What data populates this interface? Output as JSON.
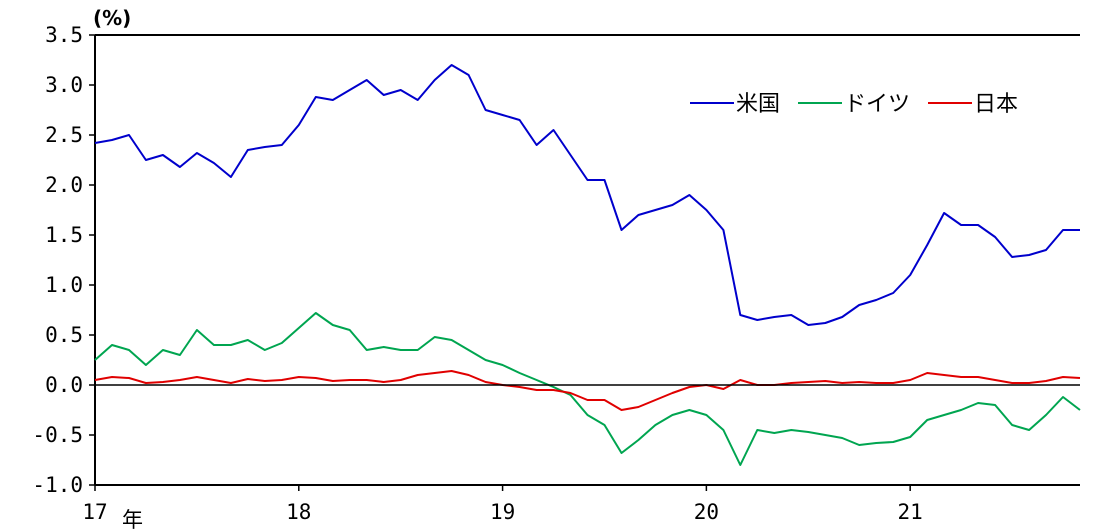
{
  "chart_data": {
    "type": "line",
    "unit_label": "(%)",
    "year_suffix": "年",
    "ylim": [
      -1.0,
      3.5
    ],
    "y_ticks": [
      "3.5",
      "3.0",
      "2.5",
      "2.0",
      "1.5",
      "1.0",
      "0.5",
      "0.0",
      "-0.5",
      "-1.0"
    ],
    "x_ticks": [
      "17",
      "18",
      "19",
      "20",
      "21"
    ],
    "xlim": [
      "2017-01",
      "2021-11"
    ],
    "legend_position": "top-right",
    "series": [
      {
        "name": "米国",
        "color": "#0000cc",
        "points": [
          [
            "2017-01",
            2.42
          ],
          [
            "2017-02",
            2.45
          ],
          [
            "2017-03",
            2.5
          ],
          [
            "2017-04",
            2.25
          ],
          [
            "2017-05",
            2.3
          ],
          [
            "2017-06",
            2.18
          ],
          [
            "2017-07",
            2.32
          ],
          [
            "2017-08",
            2.22
          ],
          [
            "2017-09",
            2.08
          ],
          [
            "2017-10",
            2.35
          ],
          [
            "2017-11",
            2.38
          ],
          [
            "2017-12",
            2.4
          ],
          [
            "2018-01",
            2.6
          ],
          [
            "2018-02",
            2.88
          ],
          [
            "2018-03",
            2.85
          ],
          [
            "2018-04",
            2.95
          ],
          [
            "2018-05",
            3.05
          ],
          [
            "2018-06",
            2.9
          ],
          [
            "2018-07",
            2.95
          ],
          [
            "2018-08",
            2.85
          ],
          [
            "2018-09",
            3.05
          ],
          [
            "2018-10",
            3.2
          ],
          [
            "2018-11",
            3.1
          ],
          [
            "2018-12",
            2.75
          ],
          [
            "2019-01",
            2.7
          ],
          [
            "2019-02",
            2.65
          ],
          [
            "2019-03",
            2.4
          ],
          [
            "2019-04",
            2.55
          ],
          [
            "2019-05",
            2.3
          ],
          [
            "2019-06",
            2.05
          ],
          [
            "2019-07",
            2.05
          ],
          [
            "2019-08",
            1.55
          ],
          [
            "2019-09",
            1.7
          ],
          [
            "2019-10",
            1.75
          ],
          [
            "2019-11",
            1.8
          ],
          [
            "2019-12",
            1.9
          ],
          [
            "2020-01",
            1.75
          ],
          [
            "2020-02",
            1.55
          ],
          [
            "2020-03",
            0.7
          ],
          [
            "2020-04",
            0.65
          ],
          [
            "2020-05",
            0.68
          ],
          [
            "2020-06",
            0.7
          ],
          [
            "2020-07",
            0.6
          ],
          [
            "2020-08",
            0.62
          ],
          [
            "2020-09",
            0.68
          ],
          [
            "2020-10",
            0.8
          ],
          [
            "2020-11",
            0.85
          ],
          [
            "2020-12",
            0.92
          ],
          [
            "2021-01",
            1.1
          ],
          [
            "2021-02",
            1.4
          ],
          [
            "2021-03",
            1.72
          ],
          [
            "2021-04",
            1.6
          ],
          [
            "2021-05",
            1.6
          ],
          [
            "2021-06",
            1.48
          ],
          [
            "2021-07",
            1.28
          ],
          [
            "2021-08",
            1.3
          ],
          [
            "2021-09",
            1.35
          ],
          [
            "2021-10",
            1.55
          ],
          [
            "2021-11",
            1.55
          ]
        ]
      },
      {
        "name": "ドイツ",
        "color": "#00a550",
        "points": [
          [
            "2017-01",
            0.25
          ],
          [
            "2017-02",
            0.4
          ],
          [
            "2017-03",
            0.35
          ],
          [
            "2017-04",
            0.2
          ],
          [
            "2017-05",
            0.35
          ],
          [
            "2017-06",
            0.3
          ],
          [
            "2017-07",
            0.55
          ],
          [
            "2017-08",
            0.4
          ],
          [
            "2017-09",
            0.4
          ],
          [
            "2017-10",
            0.45
          ],
          [
            "2017-11",
            0.35
          ],
          [
            "2017-12",
            0.42
          ],
          [
            "2018-01",
            0.57
          ],
          [
            "2018-02",
            0.72
          ],
          [
            "2018-03",
            0.6
          ],
          [
            "2018-04",
            0.55
          ],
          [
            "2018-05",
            0.35
          ],
          [
            "2018-06",
            0.38
          ],
          [
            "2018-07",
            0.35
          ],
          [
            "2018-08",
            0.35
          ],
          [
            "2018-09",
            0.48
          ],
          [
            "2018-10",
            0.45
          ],
          [
            "2018-11",
            0.35
          ],
          [
            "2018-12",
            0.25
          ],
          [
            "2019-01",
            0.2
          ],
          [
            "2019-02",
            0.12
          ],
          [
            "2019-03",
            0.05
          ],
          [
            "2019-04",
            -0.02
          ],
          [
            "2019-05",
            -0.1
          ],
          [
            "2019-06",
            -0.3
          ],
          [
            "2019-07",
            -0.4
          ],
          [
            "2019-08",
            -0.68
          ],
          [
            "2019-09",
            -0.55
          ],
          [
            "2019-10",
            -0.4
          ],
          [
            "2019-11",
            -0.3
          ],
          [
            "2019-12",
            -0.25
          ],
          [
            "2020-01",
            -0.3
          ],
          [
            "2020-02",
            -0.45
          ],
          [
            "2020-03",
            -0.8
          ],
          [
            "2020-04",
            -0.45
          ],
          [
            "2020-05",
            -0.48
          ],
          [
            "2020-06",
            -0.45
          ],
          [
            "2020-07",
            -0.47
          ],
          [
            "2020-08",
            -0.5
          ],
          [
            "2020-09",
            -0.53
          ],
          [
            "2020-10",
            -0.6
          ],
          [
            "2020-11",
            -0.58
          ],
          [
            "2020-12",
            -0.57
          ],
          [
            "2021-01",
            -0.52
          ],
          [
            "2021-02",
            -0.35
          ],
          [
            "2021-03",
            -0.3
          ],
          [
            "2021-04",
            -0.25
          ],
          [
            "2021-05",
            -0.18
          ],
          [
            "2021-06",
            -0.2
          ],
          [
            "2021-07",
            -0.4
          ],
          [
            "2021-08",
            -0.45
          ],
          [
            "2021-09",
            -0.3
          ],
          [
            "2021-10",
            -0.12
          ],
          [
            "2021-11",
            -0.25
          ]
        ]
      },
      {
        "name": "日本",
        "color": "#e00000",
        "points": [
          [
            "2017-01",
            0.05
          ],
          [
            "2017-02",
            0.08
          ],
          [
            "2017-03",
            0.07
          ],
          [
            "2017-04",
            0.02
          ],
          [
            "2017-05",
            0.03
          ],
          [
            "2017-06",
            0.05
          ],
          [
            "2017-07",
            0.08
          ],
          [
            "2017-08",
            0.05
          ],
          [
            "2017-09",
            0.02
          ],
          [
            "2017-10",
            0.06
          ],
          [
            "2017-11",
            0.04
          ],
          [
            "2017-12",
            0.05
          ],
          [
            "2018-01",
            0.08
          ],
          [
            "2018-02",
            0.07
          ],
          [
            "2018-03",
            0.04
          ],
          [
            "2018-04",
            0.05
          ],
          [
            "2018-05",
            0.05
          ],
          [
            "2018-06",
            0.03
          ],
          [
            "2018-07",
            0.05
          ],
          [
            "2018-08",
            0.1
          ],
          [
            "2018-09",
            0.12
          ],
          [
            "2018-10",
            0.14
          ],
          [
            "2018-11",
            0.1
          ],
          [
            "2018-12",
            0.03
          ],
          [
            "2019-01",
            0.0
          ],
          [
            "2019-02",
            -0.02
          ],
          [
            "2019-03",
            -0.05
          ],
          [
            "2019-04",
            -0.05
          ],
          [
            "2019-05",
            -0.08
          ],
          [
            "2019-06",
            -0.15
          ],
          [
            "2019-07",
            -0.15
          ],
          [
            "2019-08",
            -0.25
          ],
          [
            "2019-09",
            -0.22
          ],
          [
            "2019-10",
            -0.15
          ],
          [
            "2019-11",
            -0.08
          ],
          [
            "2019-12",
            -0.02
          ],
          [
            "2020-01",
            0.0
          ],
          [
            "2020-02",
            -0.04
          ],
          [
            "2020-03",
            0.05
          ],
          [
            "2020-04",
            0.0
          ],
          [
            "2020-05",
            0.0
          ],
          [
            "2020-06",
            0.02
          ],
          [
            "2020-07",
            0.03
          ],
          [
            "2020-08",
            0.04
          ],
          [
            "2020-09",
            0.02
          ],
          [
            "2020-10",
            0.03
          ],
          [
            "2020-11",
            0.02
          ],
          [
            "2020-12",
            0.02
          ],
          [
            "2021-01",
            0.05
          ],
          [
            "2021-02",
            0.12
          ],
          [
            "2021-03",
            0.1
          ],
          [
            "2021-04",
            0.08
          ],
          [
            "2021-05",
            0.08
          ],
          [
            "2021-06",
            0.05
          ],
          [
            "2021-07",
            0.02
          ],
          [
            "2021-08",
            0.02
          ],
          [
            "2021-09",
            0.04
          ],
          [
            "2021-10",
            0.08
          ],
          [
            "2021-11",
            0.07
          ]
        ]
      }
    ]
  }
}
